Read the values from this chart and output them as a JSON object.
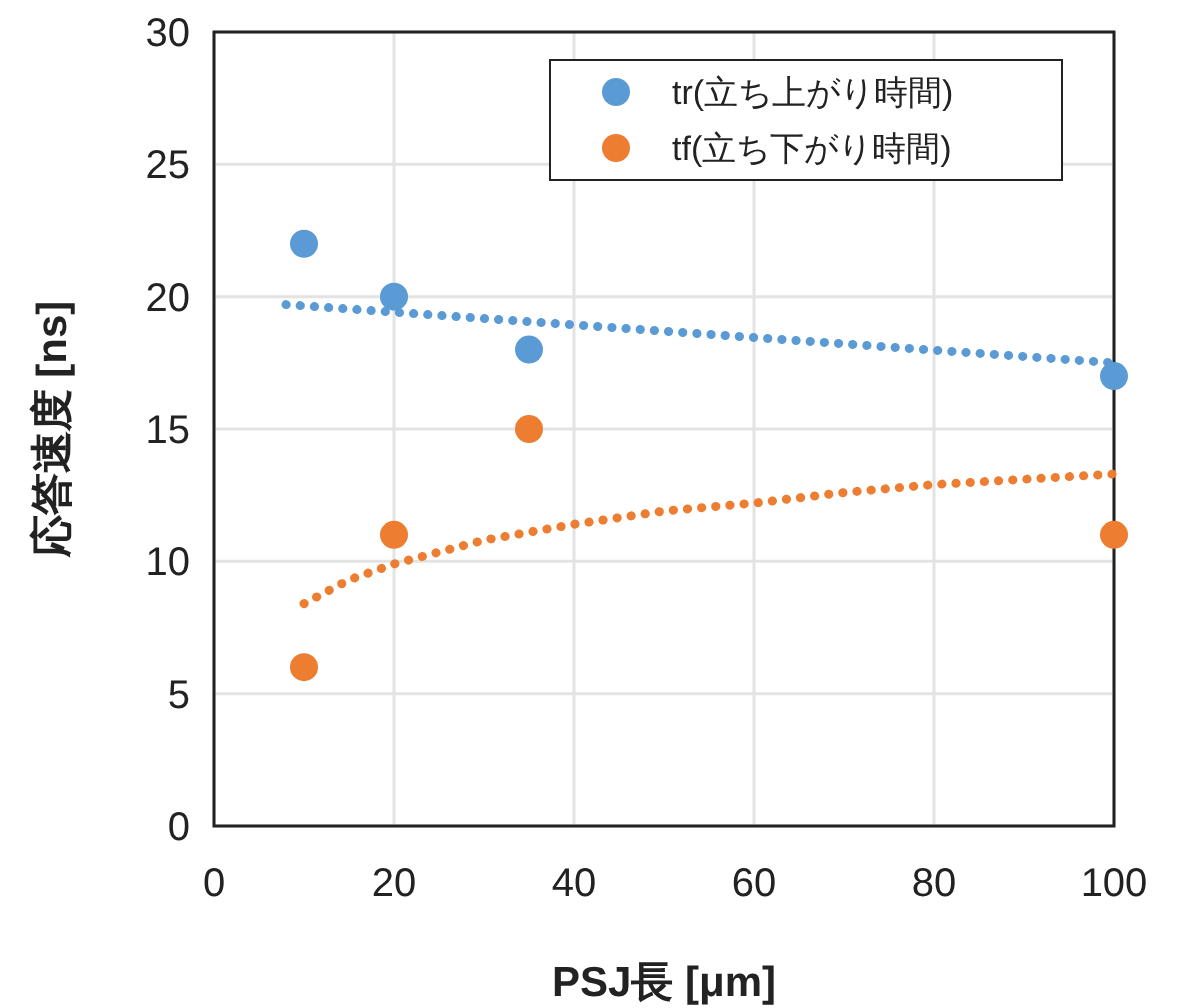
{
  "chart_data": {
    "type": "scatter",
    "xlabel": "PSJ長 [μm]",
    "ylabel": "応答速度 [ns]",
    "xlim": [
      0,
      100
    ],
    "xticks": [
      0,
      20,
      40,
      60,
      80,
      100
    ],
    "ylim": [
      0,
      30
    ],
    "yticks": [
      0,
      5,
      10,
      15,
      20,
      25,
      30
    ],
    "grid": true,
    "legend": "top right",
    "series": [
      {
        "name": "tr(立ち上がり時間)",
        "color": "#5b9bd5",
        "marker": "circle",
        "x": [
          10,
          20,
          35,
          100
        ],
        "values": [
          22,
          20,
          18,
          17
        ]
      },
      {
        "name": "tf(立ち下がり時間)",
        "color": "#ed7d31",
        "marker": "circle",
        "x": [
          10,
          20,
          35,
          100
        ],
        "values": [
          6,
          11,
          15,
          11
        ]
      },
      {
        "type": "line",
        "color": "#5b9bd5",
        "marker": "none",
        "line_style": "dotted",
        "x": [
          8,
          100
        ],
        "values": [
          19.7,
          17.5
        ]
      },
      {
        "type": "line",
        "color": "#ed7d31",
        "marker": "none",
        "line_style": "dotted",
        "x": [
          10,
          15,
          20,
          30,
          40,
          50,
          60,
          70,
          80,
          90,
          100
        ],
        "values": [
          8.4,
          9.3,
          9.9,
          10.8,
          11.4,
          11.9,
          12.2,
          12.6,
          12.9,
          13.1,
          13.3
        ]
      }
    ]
  }
}
